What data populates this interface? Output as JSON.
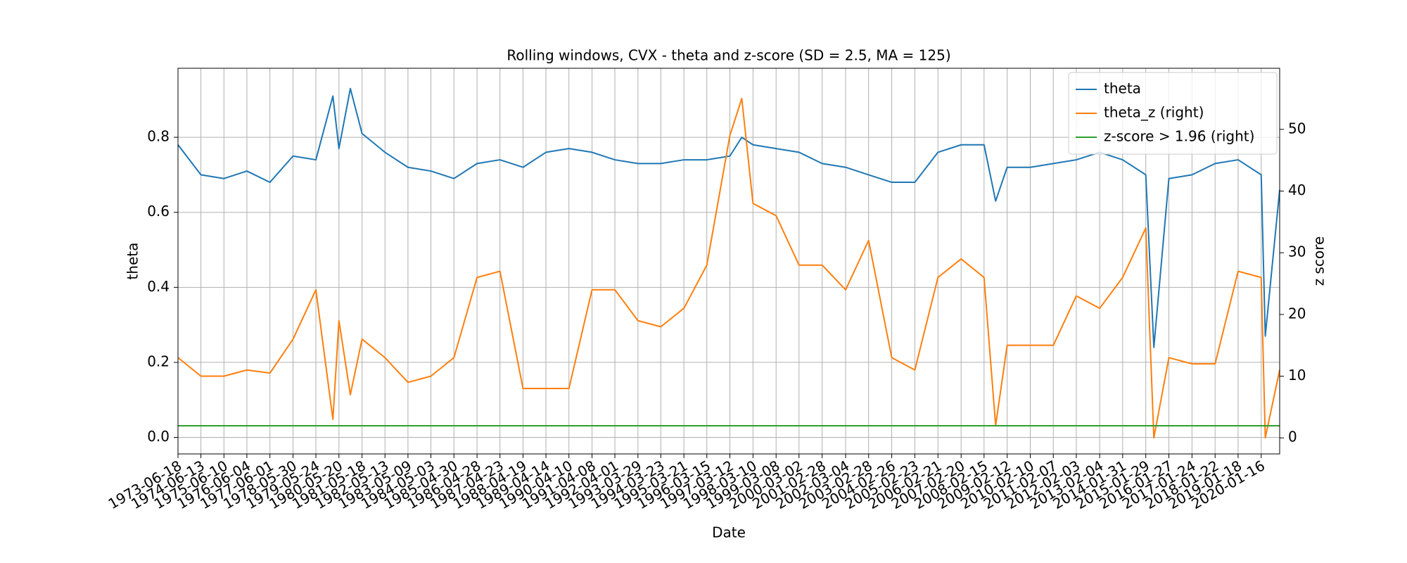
{
  "chart_data": {
    "type": "line",
    "title": "Rolling windows, CVX - theta and z-score (SD = 2.5, MA = 125)",
    "x_label": "Date",
    "y_label": "theta",
    "y2_label": "z score",
    "x": [
      "1973-06-18",
      "1974-06-13",
      "1975-06-10",
      "1976-06-04",
      "1977-06-01",
      "1978-05-30",
      "1979-05-24",
      "1980-02-15",
      "1980-05-20",
      "1980-11-15",
      "1981-05-18",
      "1982-05-13",
      "1983-05-09",
      "1984-05-03",
      "1985-04-30",
      "1986-04-28",
      "1987-04-23",
      "1988-04-19",
      "1989-04-14",
      "1990-04-10",
      "1991-04-08",
      "1992-04-01",
      "1993-03-29",
      "1994-03-23",
      "1995-03-21",
      "1996-03-15",
      "1997-03-12",
      "1997-09-15",
      "1998-03-10",
      "1999-03-08",
      "2000-03-02",
      "2001-02-28",
      "2002-03-04",
      "2003-02-28",
      "2004-02-26",
      "2005-02-23",
      "2006-02-21",
      "2007-02-20",
      "2008-02-15",
      "2008-08-15",
      "2009-02-12",
      "2010-02-10",
      "2011-02-07",
      "2012-02-03",
      "2013-02-04",
      "2014-01-31",
      "2015-01-29",
      "2015-06-05",
      "2016-01-27",
      "2017-01-24",
      "2018-01-22",
      "2019-01-18",
      "2020-01-16",
      "2020-03-20",
      "2020-11-01"
    ],
    "series": [
      {
        "name": "theta",
        "color": "#1f77b4",
        "axis": "y",
        "values": [
          0.78,
          0.7,
          0.69,
          0.71,
          0.68,
          0.75,
          0.74,
          0.91,
          0.77,
          0.93,
          0.81,
          0.76,
          0.72,
          0.71,
          0.69,
          0.73,
          0.74,
          0.72,
          0.76,
          0.77,
          0.76,
          0.74,
          0.73,
          0.73,
          0.74,
          0.74,
          0.75,
          0.8,
          0.78,
          0.77,
          0.76,
          0.73,
          0.72,
          0.7,
          0.68,
          0.68,
          0.76,
          0.78,
          0.78,
          0.63,
          0.72,
          0.72,
          0.73,
          0.74,
          0.76,
          0.74,
          0.7,
          0.24,
          0.69,
          0.7,
          0.73,
          0.74,
          0.7,
          0.27,
          0.66
        ]
      },
      {
        "name": "theta_z (right)",
        "color": "#ff7f0e",
        "axis": "y2",
        "values": [
          13,
          10,
          10,
          11,
          10.5,
          16,
          24,
          3,
          19,
          7,
          16,
          13,
          9,
          10,
          13,
          26,
          27,
          8,
          8,
          8,
          24,
          24,
          19,
          18,
          21,
          28,
          49,
          55,
          38,
          36,
          28,
          28,
          24,
          32,
          13,
          11,
          26,
          29,
          26,
          2,
          15,
          15,
          15,
          23,
          21,
          26,
          34,
          0,
          13,
          12,
          12,
          27,
          26,
          0,
          11
        ]
      },
      {
        "name": "z-score > 1.96 (right)",
        "color": "#2ca02c",
        "axis": "y2",
        "values": [
          1.96,
          1.96,
          1.96,
          1.96,
          1.96,
          1.96,
          1.96,
          1.96,
          1.96,
          1.96,
          1.96,
          1.96,
          1.96,
          1.96,
          1.96,
          1.96,
          1.96,
          1.96,
          1.96,
          1.96,
          1.96,
          1.96,
          1.96,
          1.96,
          1.96,
          1.96,
          1.96,
          1.96,
          1.96,
          1.96,
          1.96,
          1.96,
          1.96,
          1.96,
          1.96,
          1.96,
          1.96,
          1.96,
          1.96,
          1.96,
          1.96,
          1.96,
          1.96,
          1.96,
          1.96,
          1.96,
          1.96,
          1.96,
          1.96,
          1.96,
          1.96,
          1.96,
          1.96,
          1.96,
          1.96
        ]
      }
    ],
    "xlim": [
      "1973-06-18",
      "2020-11-01"
    ],
    "xticks": [
      "1973-06-18",
      "1974-06-13",
      "1975-06-10",
      "1976-06-04",
      "1977-06-01",
      "1978-05-30",
      "1979-05-24",
      "1980-05-20",
      "1981-05-18",
      "1982-05-13",
      "1983-05-09",
      "1984-05-03",
      "1985-04-30",
      "1986-04-28",
      "1987-04-23",
      "1988-04-19",
      "1989-04-14",
      "1990-04-10",
      "1991-04-08",
      "1992-04-01",
      "1993-03-29",
      "1994-03-23",
      "1995-03-21",
      "1996-03-15",
      "1997-03-12",
      "1998-03-10",
      "1999-03-08",
      "2000-03-02",
      "2001-02-28",
      "2002-03-04",
      "2003-02-28",
      "2004-02-26",
      "2005-02-23",
      "2006-02-21",
      "2007-02-20",
      "2008-02-15",
      "2009-02-12",
      "2010-02-10",
      "2011-02-07",
      "2012-02-03",
      "2013-02-04",
      "2014-01-31",
      "2015-01-29",
      "2016-01-27",
      "2017-01-24",
      "2018-01-22",
      "2019-01-18",
      "2020-01-16"
    ],
    "ylim": [
      -0.044,
      0.984
    ],
    "yticks": [
      {
        "value": 0,
        "label": "0.0"
      },
      0.2,
      0.4,
      0.6,
      0.8
    ],
    "y2lim": [
      -2.6,
      59.9
    ],
    "y2ticks": [
      0,
      10,
      20,
      30,
      40,
      50
    ],
    "grid": true,
    "legend": "upper right"
  }
}
